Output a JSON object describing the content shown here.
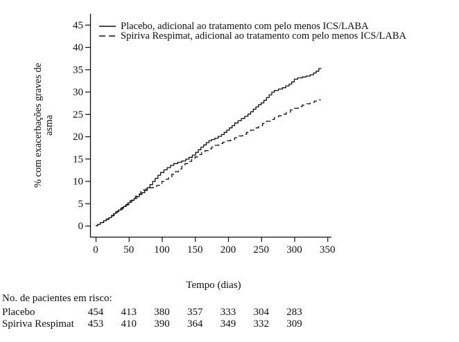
{
  "figure": {
    "y_axis_title_line1": "% com exacerbações graves de",
    "y_axis_title_line2": "asma",
    "x_axis_title": "Tempo (dias)",
    "legend": [
      {
        "label": "Placebo, adicional ao tratamento com pelo menos ICS/LABA",
        "style": "solid"
      },
      {
        "label": "Spiriva Respimat, adicional ao tratamento com pelo menos ICS/LABA",
        "style": "dashed"
      }
    ]
  },
  "colors": {
    "ink": "#0e0e0e",
    "background": "#ffffff"
  },
  "chart_data": {
    "type": "line",
    "subtype": "kaplan-meier-cumulative-incidence-step",
    "title": "",
    "xlabel": "Tempo (dias)",
    "ylabel": "% com exacerbações graves de asma",
    "xlim": [
      0,
      350
    ],
    "ylim": [
      0,
      45
    ],
    "xticks": [
      0,
      50,
      100,
      150,
      200,
      250,
      300,
      350
    ],
    "yticks": [
      0,
      5,
      10,
      15,
      20,
      25,
      30,
      35,
      40,
      45
    ],
    "grid": false,
    "legend_position": "top-left",
    "series": [
      {
        "name": "Placebo, adicional ao tratamento com pelo menos ICS/LABA",
        "line": "solid",
        "color": "#0e0e0e",
        "points": [
          [
            0,
            0
          ],
          [
            3,
            0.3
          ],
          [
            7,
            0.7
          ],
          [
            12,
            1.1
          ],
          [
            16,
            1.4
          ],
          [
            20,
            1.8
          ],
          [
            24,
            2.2
          ],
          [
            27,
            2.7
          ],
          [
            30,
            3.1
          ],
          [
            34,
            3.5
          ],
          [
            38,
            3.9
          ],
          [
            42,
            4.3
          ],
          [
            46,
            4.7
          ],
          [
            50,
            5.2
          ],
          [
            54,
            5.7
          ],
          [
            58,
            6.1
          ],
          [
            62,
            6.5
          ],
          [
            66,
            7.0
          ],
          [
            70,
            7.4
          ],
          [
            74,
            7.9
          ],
          [
            78,
            8.5
          ],
          [
            82,
            9.2
          ],
          [
            86,
            9.9
          ],
          [
            90,
            10.6
          ],
          [
            94,
            11.3
          ],
          [
            98,
            11.9
          ],
          [
            103,
            12.5
          ],
          [
            108,
            13.0
          ],
          [
            113,
            13.5
          ],
          [
            118,
            13.9
          ],
          [
            124,
            14.2
          ],
          [
            130,
            14.5
          ],
          [
            136,
            14.9
          ],
          [
            141,
            15.3
          ],
          [
            146,
            15.8
          ],
          [
            151,
            16.4
          ],
          [
            155,
            17.0
          ],
          [
            159,
            17.6
          ],
          [
            163,
            18.1
          ],
          [
            167,
            18.6
          ],
          [
            171,
            19.0
          ],
          [
            175,
            19.3
          ],
          [
            180,
            19.6
          ],
          [
            185,
            20.0
          ],
          [
            190,
            20.4
          ],
          [
            194,
            20.9
          ],
          [
            198,
            21.4
          ],
          [
            202,
            21.9
          ],
          [
            206,
            22.4
          ],
          [
            210,
            23.0
          ],
          [
            215,
            23.5
          ],
          [
            220,
            24.0
          ],
          [
            225,
            24.5
          ],
          [
            230,
            25.0
          ],
          [
            234,
            25.5
          ],
          [
            238,
            26.1
          ],
          [
            242,
            26.6
          ],
          [
            246,
            27.1
          ],
          [
            250,
            27.5
          ],
          [
            254,
            28.1
          ],
          [
            258,
            28.7
          ],
          [
            262,
            29.3
          ],
          [
            266,
            29.9
          ],
          [
            270,
            30.3
          ],
          [
            276,
            30.6
          ],
          [
            282,
            30.9
          ],
          [
            287,
            31.3
          ],
          [
            292,
            31.7
          ],
          [
            296,
            32.2
          ],
          [
            300,
            32.8
          ],
          [
            305,
            33.1
          ],
          [
            312,
            33.3
          ],
          [
            318,
            33.5
          ],
          [
            324,
            33.8
          ],
          [
            329,
            34.2
          ],
          [
            333,
            34.6
          ],
          [
            337,
            35.2
          ],
          [
            341,
            35.2
          ]
        ]
      },
      {
        "name": "Spiriva Respimat, adicional ao tratamento com pelo menos ICS/LABA",
        "line": "dashed",
        "color": "#0e0e0e",
        "points": [
          [
            0,
            0
          ],
          [
            3,
            0.3
          ],
          [
            7,
            0.7
          ],
          [
            12,
            1.1
          ],
          [
            16,
            1.5
          ],
          [
            20,
            1.9
          ],
          [
            24,
            2.3
          ],
          [
            28,
            2.8
          ],
          [
            32,
            3.2
          ],
          [
            36,
            3.6
          ],
          [
            40,
            4.1
          ],
          [
            44,
            4.6
          ],
          [
            48,
            5.1
          ],
          [
            52,
            5.6
          ],
          [
            56,
            6.1
          ],
          [
            60,
            6.6
          ],
          [
            64,
            7.1
          ],
          [
            68,
            7.6
          ],
          [
            72,
            8.0
          ],
          [
            76,
            8.3
          ],
          [
            81,
            8.5
          ],
          [
            87,
            8.7
          ],
          [
            92,
            9.0
          ],
          [
            96,
            9.4
          ],
          [
            100,
            9.9
          ],
          [
            105,
            10.4
          ],
          [
            110,
            10.9
          ],
          [
            115,
            11.5
          ],
          [
            120,
            12.1
          ],
          [
            125,
            12.7
          ],
          [
            130,
            13.3
          ],
          [
            135,
            13.9
          ],
          [
            140,
            14.4
          ],
          [
            145,
            14.9
          ],
          [
            150,
            15.4
          ],
          [
            155,
            15.9
          ],
          [
            160,
            16.4
          ],
          [
            165,
            16.8
          ],
          [
            170,
            17.2
          ],
          [
            175,
            17.6
          ],
          [
            180,
            18.0
          ],
          [
            186,
            18.4
          ],
          [
            192,
            18.7
          ],
          [
            198,
            19.0
          ],
          [
            204,
            19.3
          ],
          [
            210,
            19.7
          ],
          [
            216,
            20.1
          ],
          [
            222,
            20.5
          ],
          [
            228,
            20.9
          ],
          [
            234,
            21.4
          ],
          [
            240,
            21.9
          ],
          [
            246,
            22.4
          ],
          [
            252,
            22.9
          ],
          [
            258,
            23.4
          ],
          [
            264,
            23.8
          ],
          [
            270,
            24.2
          ],
          [
            276,
            24.6
          ],
          [
            282,
            25.0
          ],
          [
            288,
            25.4
          ],
          [
            294,
            25.9
          ],
          [
            300,
            26.3
          ],
          [
            306,
            26.7
          ],
          [
            312,
            27.0
          ],
          [
            318,
            27.3
          ],
          [
            324,
            27.6
          ],
          [
            330,
            27.9
          ],
          [
            335,
            28.2
          ],
          [
            340,
            28.2
          ]
        ]
      }
    ]
  },
  "risk_table": {
    "heading": "No. de pacientes em risco:",
    "time_points": [
      0,
      50,
      100,
      150,
      200,
      250,
      300
    ],
    "rows": [
      {
        "label": "Placebo",
        "values": [
          454,
          413,
          380,
          357,
          333,
          304,
          283
        ]
      },
      {
        "label": "Spiriva Respimat",
        "values": [
          453,
          410,
          390,
          364,
          349,
          332,
          309
        ]
      }
    ]
  }
}
